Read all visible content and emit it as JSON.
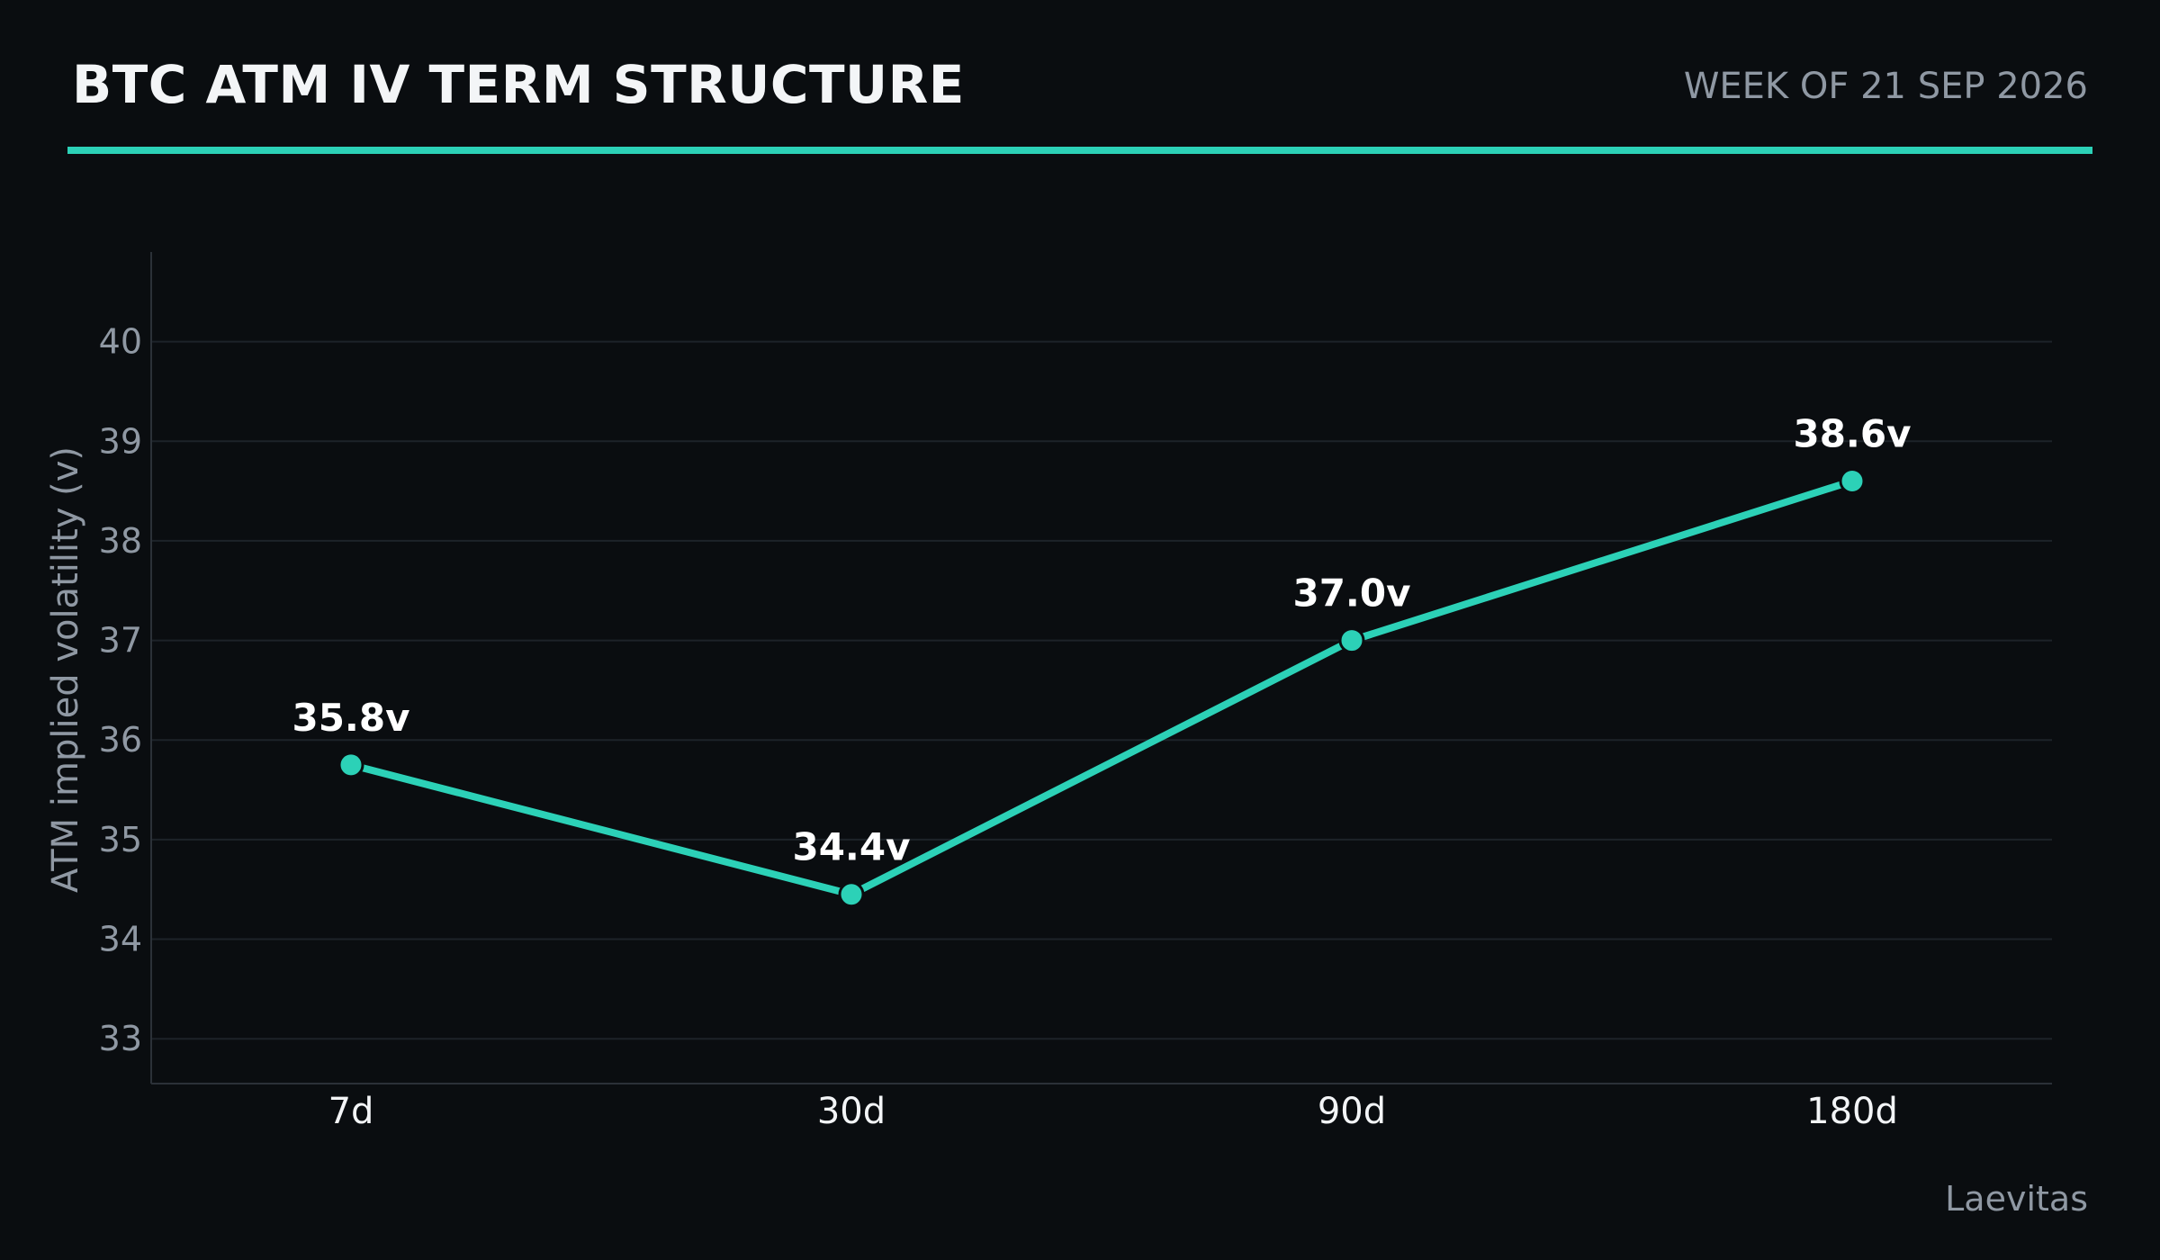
{
  "header": {
    "title": "BTC ATM IV TERM STRUCTURE",
    "subtitle": "WEEK OF 21 SEP 2026"
  },
  "footer": {
    "source": "Laevitas"
  },
  "colors": {
    "background": "#0a0d10",
    "accent": "#2cd1b7",
    "gridline": "#1d2329",
    "axis": "#2b3138",
    "muted_text": "#8f98a3",
    "title_text": "#f3f5f7"
  },
  "chart_data": {
    "type": "line",
    "title": "",
    "xlabel": "",
    "ylabel": "ATM implied volatility (v)",
    "categories": [
      "7d",
      "30d",
      "90d",
      "180d"
    ],
    "series": [
      {
        "values": [
          35.75,
          34.45,
          37.0,
          38.6
        ],
        "labels": [
          "35.8v",
          "34.4v",
          "37.0v",
          "38.6v"
        ]
      }
    ],
    "ylim": [
      32.55,
      40.9
    ],
    "yticks": [
      33,
      34,
      35,
      36,
      37,
      38,
      39,
      40
    ],
    "grid": true,
    "legend": "none",
    "markers": true
  }
}
